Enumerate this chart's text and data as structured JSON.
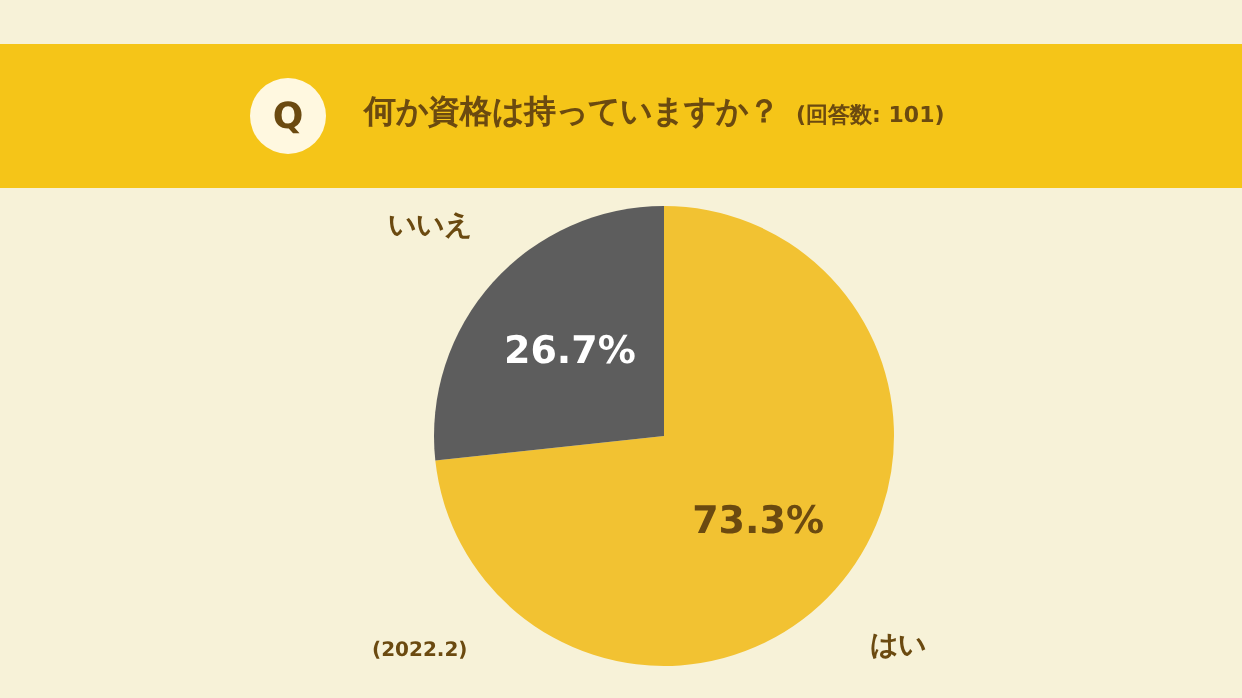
{
  "chart_data": {
    "type": "pie",
    "title": "何か資格は持っていますか？",
    "subtitle": "(回答数: 101)",
    "annotations": [
      "Q",
      "(2022.2)"
    ],
    "categories": [
      "はい",
      "いいえ"
    ],
    "values": [
      73.3,
      26.7
    ],
    "value_labels": [
      "73.3%",
      "26.7%"
    ],
    "colors": [
      "#f2c232",
      "#5d5d5d"
    ],
    "legend": false
  }
}
